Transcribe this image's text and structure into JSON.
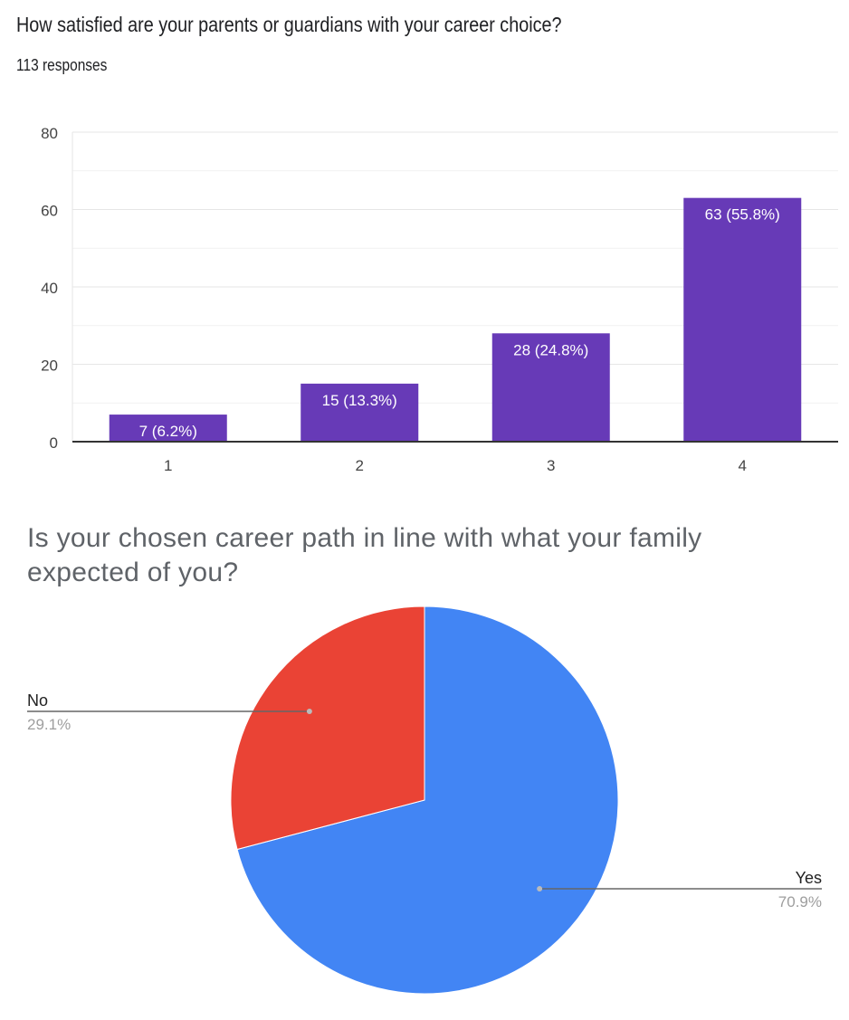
{
  "chart_data": [
    {
      "type": "bar",
      "title": "How satisfied are your parents or guardians with your career choice?",
      "subtitle": "113 responses",
      "categories": [
        "1",
        "2",
        "3",
        "4"
      ],
      "values": [
        7,
        15,
        28,
        63
      ],
      "data_labels": [
        "7 (6.2%)",
        "15 (13.3%)",
        "28 (24.8%)",
        "63 (55.8%)"
      ],
      "y_ticks": [
        "0",
        "20",
        "40",
        "60",
        "80"
      ],
      "ylim": [
        0,
        80
      ],
      "grid": true,
      "colors": {
        "bar": "#673ab7",
        "grid": "#e6e6e6",
        "axis": "#333333",
        "label": "#ffffff"
      }
    },
    {
      "type": "pie",
      "title": "Is your chosen career path in line with what your family expected of you?",
      "slices": [
        {
          "label": "Yes",
          "value": 70.9,
          "percent_label": "70.9%",
          "color": "#4285f4"
        },
        {
          "label": "No",
          "value": 29.1,
          "percent_label": "29.1%",
          "color": "#ea4335"
        }
      ],
      "legend": "labeled-lines"
    }
  ]
}
